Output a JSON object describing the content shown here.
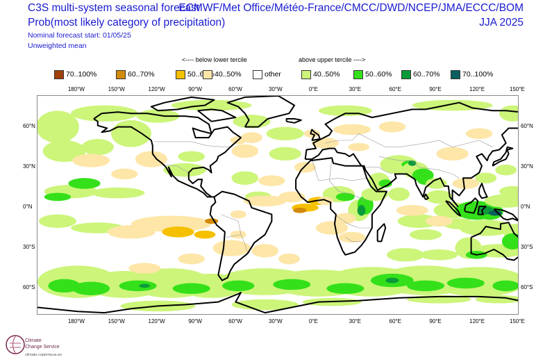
{
  "header": {
    "title_line1": "C3S multi-system seasonal forecast",
    "title_line2": "Prob(most likely category of precipitation)",
    "forecast_start": "Nominal forecast start: 01/05/25",
    "weighting": "Unweighted mean",
    "centres": "ECMWF/Met Office/Météo-France/CMCC/DWD/NCEP/JMA/ECCC/BOM",
    "period": "JJA 2025"
  },
  "legend": {
    "below_label": "<---- below lower tercile",
    "above_label": "above upper tercile ---->",
    "items": [
      {
        "label": "70..100%",
        "color": "#a0400a"
      },
      {
        "label": "60..70%",
        "color": "#d28a0a"
      },
      {
        "label": "50..60%",
        "color": "#f5c000"
      },
      {
        "label": "40..50%",
        "color": "#fde6a8"
      },
      {
        "label": "other",
        "color": "#ffffff"
      },
      {
        "label": "40..50%",
        "color": "#ccf57a"
      },
      {
        "label": "50..60%",
        "color": "#34e01a"
      },
      {
        "label": "60..70%",
        "color": "#0b9a3a"
      },
      {
        "label": "70..100%",
        "color": "#0b5f5f"
      }
    ]
  },
  "axes": {
    "lon_ticks": [
      "180°W",
      "150°W",
      "120°W",
      "90°W",
      "60°W",
      "30°W",
      "0°E",
      "30°E",
      "60°E",
      "90°E",
      "120°E",
      "150°E"
    ],
    "lat_ticks": [
      "60°N",
      "30°N",
      "0°N",
      "30°S",
      "60°S"
    ]
  },
  "map": {
    "lon_range": [
      -210,
      150
    ],
    "lat_range": [
      -80,
      83
    ],
    "land_color": "#000000",
    "border_color": "#9a9a9a"
  },
  "logo": {
    "line1": "Climate",
    "line2": "Change Service",
    "url": "climate.copernicus.eu"
  }
}
